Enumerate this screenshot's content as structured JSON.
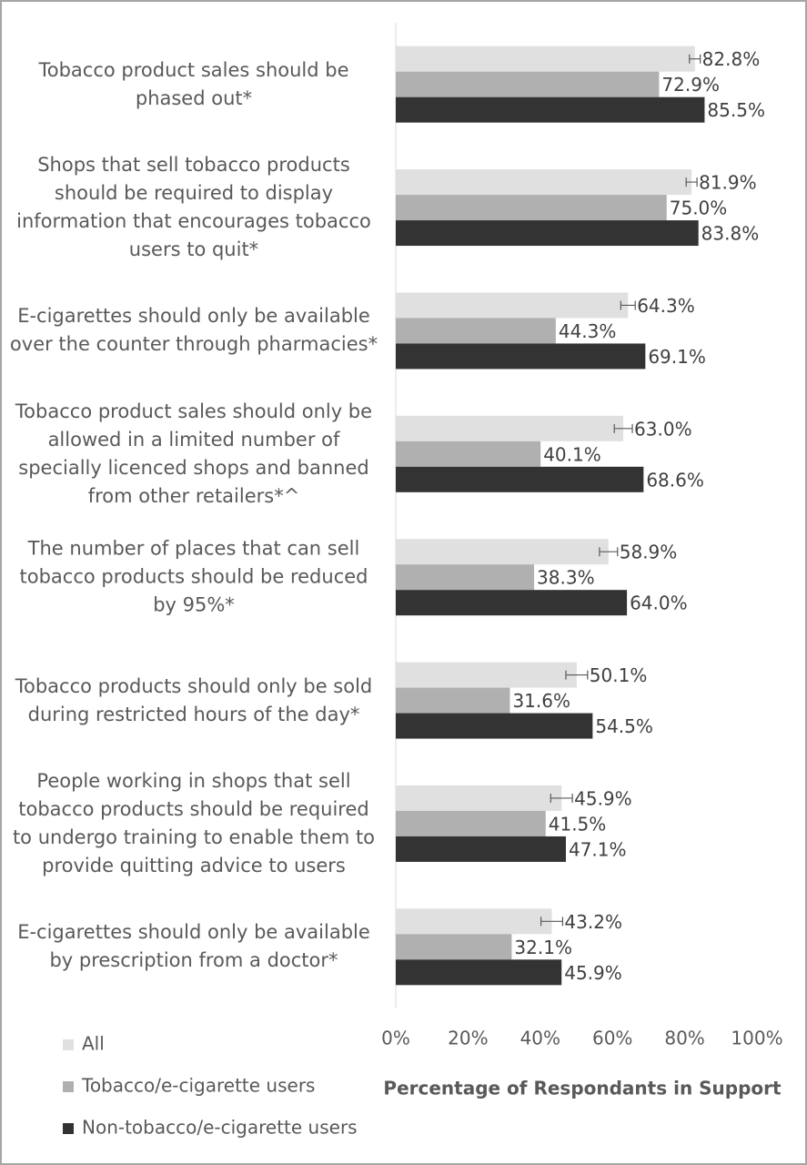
{
  "chart_data": {
    "type": "bar",
    "orientation": "horizontal",
    "categories": [
      "Tobacco product sales should be phased out*",
      "Shops that sell tobacco products should be required to display information that encourages tobacco users to quit*",
      "E-cigarettes should only be available over the counter through pharmacies*",
      "Tobacco product sales should only be allowed in a limited number of specially licenced shops and banned from other retailers*^",
      "The number of places that can sell tobacco products should be reduced by 95%*",
      "Tobacco products should only be sold during restricted hours of the day*",
      "People working in shops that sell tobacco products should be required to undergo training to enable them to provide quitting advice to users",
      "E-cigarettes should only be available by prescription from a doctor*"
    ],
    "series": [
      {
        "name": "All",
        "color": "#e0e0e0",
        "values": [
          82.8,
          81.9,
          64.3,
          63.0,
          58.9,
          50.1,
          45.9,
          43.2
        ],
        "errors": [
          1.5,
          1.5,
          2,
          2.5,
          2.5,
          3,
          3,
          3
        ],
        "value_labels": [
          "82.8%",
          "81.9%",
          "64.3%",
          "63.0%",
          "58.9%",
          "50.1%",
          "45.9%",
          "43.2%"
        ]
      },
      {
        "name": "Tobacco/e-cigarette users",
        "color": "#b0b0b0",
        "values": [
          72.9,
          75.0,
          44.3,
          40.1,
          38.3,
          31.6,
          41.5,
          32.1
        ],
        "value_labels": [
          "72.9%",
          "75.0%",
          "44.3%",
          "40.1%",
          "38.3%",
          "31.6%",
          "41.5%",
          "32.1%"
        ]
      },
      {
        "name": "Non-tobacco/e-cigarette users",
        "color": "#333333",
        "values": [
          85.5,
          83.8,
          69.1,
          68.6,
          64.0,
          54.5,
          47.1,
          45.9
        ],
        "value_labels": [
          "85.5%",
          "83.8%",
          "69.1%",
          "68.6%",
          "64.0%",
          "54.5%",
          "47.1%",
          "45.9%"
        ]
      }
    ],
    "xlabel": "Percentage of Respondants in Support",
    "xlim": [
      0,
      100
    ],
    "xticks": [
      {
        "value": 0,
        "label": "0%"
      },
      {
        "value": 20,
        "label": "20%"
      },
      {
        "value": 40,
        "label": "40%"
      },
      {
        "value": 60,
        "label": "60%"
      },
      {
        "value": 80,
        "label": "80%"
      },
      {
        "value": 100,
        "label": "100%"
      }
    ],
    "legend": "bottom-left"
  }
}
